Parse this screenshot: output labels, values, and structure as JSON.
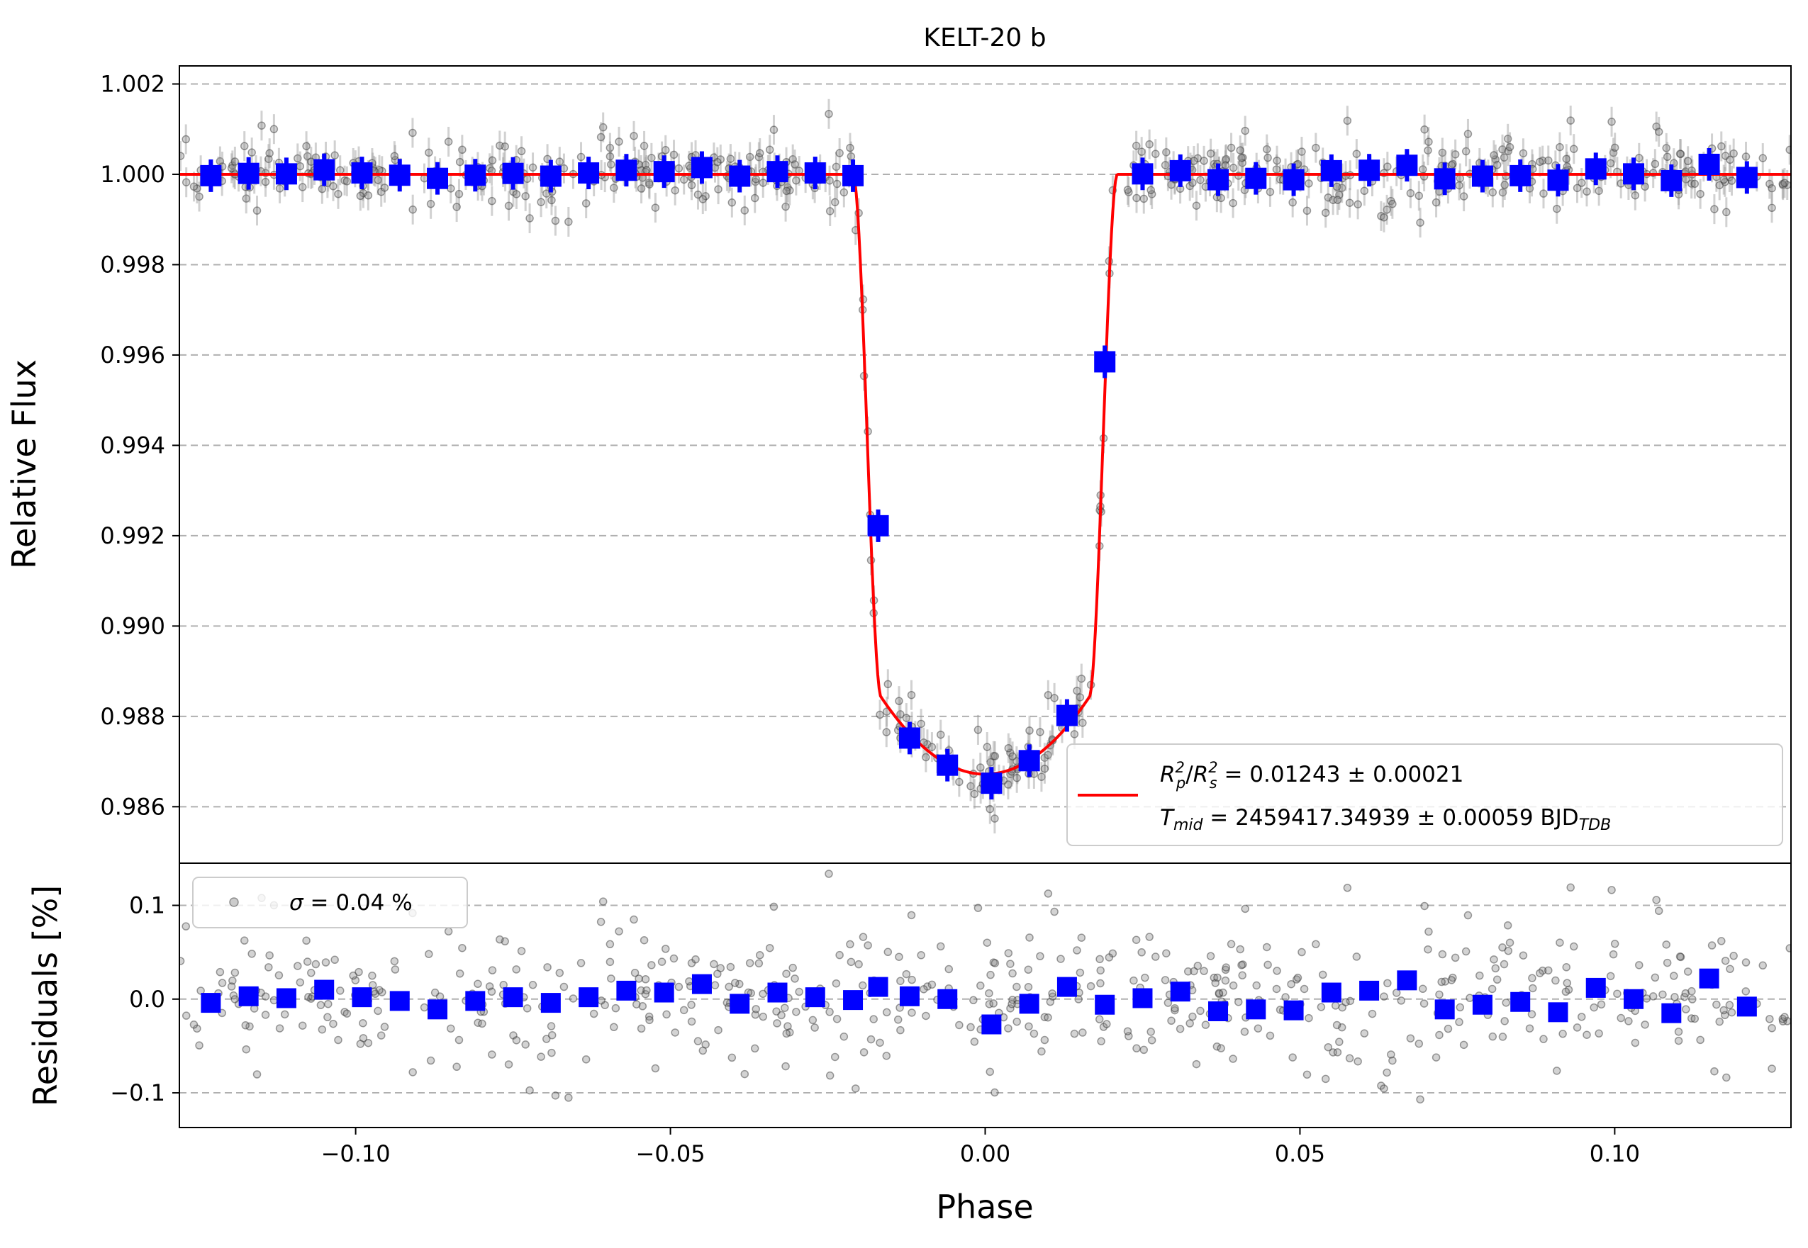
{
  "chart_data": [
    {
      "type": "scatter",
      "title": "KELT-20 b",
      "xlabel": "",
      "ylabel": "Relative Flux",
      "xlim": [
        -0.128,
        0.128
      ],
      "ylim": [
        0.98475,
        1.0024
      ],
      "yticks": [
        0.986,
        0.988,
        0.99,
        0.992,
        0.994,
        0.996,
        0.998,
        1.0,
        1.002
      ],
      "ytick_labels": [
        "0.986",
        "0.988",
        "0.990",
        "0.992",
        "0.994",
        "0.996",
        "0.998",
        "1.000",
        "1.002"
      ],
      "grid": "horizontal dashed",
      "transit_model": {
        "baseline": 1.0,
        "depth_center": 0.98672,
        "contact_phase_1": -0.021,
        "contact_phase_2": -0.0165,
        "contact_phase_3": 0.0165,
        "contact_phase_4": 0.021
      },
      "series": [
        {
          "name": "binned",
          "marker": "square",
          "color": "#0000ff",
          "x": [
            -0.123,
            -0.117,
            -0.111,
            -0.105,
            -0.099,
            -0.093,
            -0.087,
            -0.081,
            -0.075,
            -0.069,
            -0.063,
            -0.057,
            -0.051,
            -0.045,
            -0.039,
            -0.033,
            -0.027,
            -0.021,
            -0.017,
            -0.012,
            -0.006,
            0.001,
            0.007,
            0.013,
            0.019,
            0.025,
            0.031,
            0.037,
            0.043,
            0.049,
            0.055,
            0.061,
            0.067,
            0.073,
            0.079,
            0.085,
            0.091,
            0.097,
            0.103,
            0.109,
            0.115,
            0.121
          ],
          "y": [
            0.99997,
            1.00002,
            1.00001,
            1.0001,
            1.00003,
            0.99998,
            0.99991,
            0.99998,
            1.00002,
            0.99996,
            1.00003,
            1.00009,
            1.00006,
            1.00015,
            0.99996,
            1.00006,
            1.00003,
            0.99997,
            0.99222,
            0.98752,
            0.98692,
            0.98652,
            0.98702,
            0.98802,
            0.99585,
            1.00001,
            1.00008,
            0.99988,
            0.99991,
            0.99988,
            1.00008,
            1.00009,
            1.0002,
            0.9999,
            0.99996,
            0.99997,
            0.99987,
            1.00012,
            1.00001,
            0.99986,
            1.00022,
            0.99993
          ],
          "yerr": 0.00012
        },
        {
          "name": "model",
          "type": "line",
          "color": "#ff0000"
        },
        {
          "name": "unbinned",
          "marker": "circle",
          "color": "#7f7f7f",
          "n_points": 600,
          "scatter_percent": 0.04
        }
      ],
      "legend": {
        "placement": "lower-right",
        "entries": [
          {
            "label_math": "R_p^2/R_s^2",
            "value_text": " = 0.01243 ± 0.00021"
          },
          {
            "label_math": "T_mid",
            "value_text": " = 2459417.34939 ± 0.00059 BJD",
            "value_sub": "TDB"
          }
        ]
      }
    },
    {
      "type": "scatter",
      "title": "",
      "xlabel": "Phase",
      "ylabel": "Residuals [%]",
      "xlim": [
        -0.128,
        0.128
      ],
      "ylim": [
        -0.137,
        0.145
      ],
      "xticks": [
        -0.1,
        -0.05,
        0.0,
        0.05,
        0.1
      ],
      "xtick_labels": [
        "−0.10",
        "−0.05",
        "0.00",
        "0.05",
        "0.10"
      ],
      "yticks": [
        -0.1,
        0.0,
        0.1
      ],
      "ytick_labels": [
        "−0.1",
        "0.0",
        "0.1"
      ],
      "grid": "horizontal dashed",
      "series": [
        {
          "name": "binned_residuals",
          "marker": "square",
          "color": "#0000ff",
          "x": [
            -0.123,
            -0.117,
            -0.111,
            -0.105,
            -0.099,
            -0.093,
            -0.087,
            -0.081,
            -0.075,
            -0.069,
            -0.063,
            -0.057,
            -0.051,
            -0.045,
            -0.039,
            -0.033,
            -0.027,
            -0.021,
            -0.017,
            -0.012,
            -0.006,
            0.001,
            0.007,
            0.013,
            0.019,
            0.025,
            0.031,
            0.037,
            0.043,
            0.049,
            0.055,
            0.061,
            0.067,
            0.073,
            0.079,
            0.085,
            0.091,
            0.097,
            0.103,
            0.109,
            0.115,
            0.121
          ],
          "y": [
            -0.004,
            0.003,
            0.001,
            0.01,
            0.002,
            -0.002,
            -0.011,
            -0.002,
            0.002,
            -0.004,
            0.002,
            0.009,
            0.007,
            0.016,
            -0.005,
            0.007,
            0.002,
            -0.001,
            0.013,
            0.003,
            0.0,
            -0.027,
            -0.005,
            0.013,
            -0.006,
            0.001,
            0.008,
            -0.013,
            -0.011,
            -0.012,
            0.007,
            0.009,
            0.02,
            -0.011,
            -0.006,
            -0.003,
            -0.014,
            0.012,
            0.0,
            -0.015,
            0.022,
            -0.008
          ]
        },
        {
          "name": "residuals",
          "marker": "circle",
          "color": "#7f7f7f",
          "n_points": 600
        }
      ],
      "legend": {
        "placement": "upper-left",
        "entries": [
          {
            "label_math": "σ",
            "value_text": " = 0.04 %"
          }
        ]
      }
    }
  ]
}
